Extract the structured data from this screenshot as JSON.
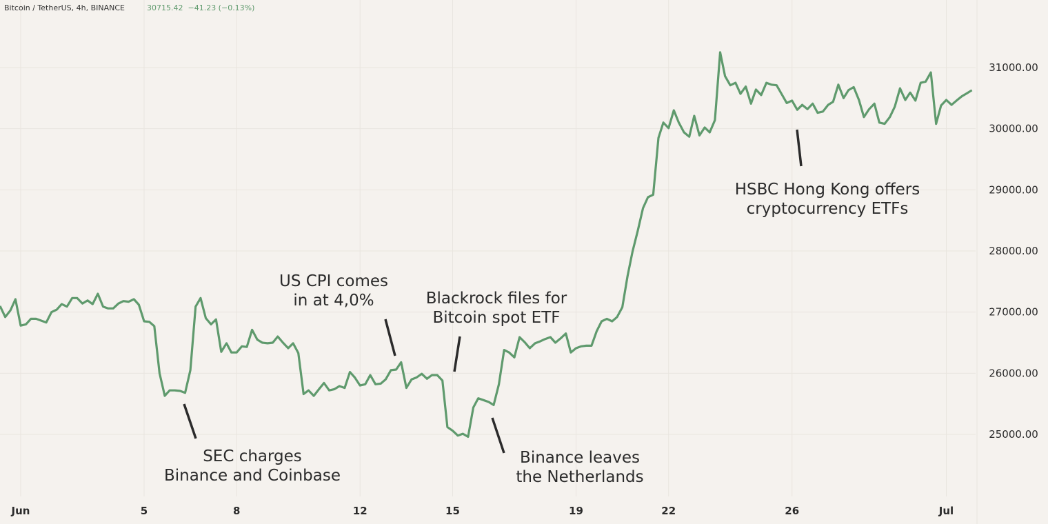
{
  "chart_data": {
    "type": "line",
    "symbol": "Bitcoin / TetherUS, 4h, BINANCE",
    "quote": "30715.42  −41.23 (−0.13%)",
    "x": [
      0.33,
      0.5,
      0.67,
      0.83,
      1,
      1.17,
      1.33,
      1.5,
      1.67,
      1.83,
      2,
      2.17,
      2.33,
      2.5,
      2.67,
      2.83,
      3,
      3.17,
      3.33,
      3.5,
      3.67,
      3.83,
      4,
      4.17,
      4.33,
      4.5,
      4.67,
      4.83,
      5,
      5.17,
      5.33,
      5.5,
      5.67,
      5.83,
      6,
      6.17,
      6.33,
      6.5,
      6.67,
      6.83,
      7,
      7.17,
      7.33,
      7.5,
      7.67,
      7.83,
      8,
      8.17,
      8.33,
      8.5,
      8.67,
      8.83,
      9,
      9.17,
      9.33,
      9.5,
      9.67,
      9.83,
      10,
      10.17,
      10.33,
      10.5,
      10.67,
      10.83,
      11,
      11.17,
      11.33,
      11.5,
      11.67,
      11.83,
      12,
      12.17,
      12.33,
      12.5,
      12.67,
      12.83,
      13,
      13.17,
      13.33,
      13.5,
      13.67,
      13.83,
      14,
      14.17,
      14.33,
      14.5,
      14.67,
      14.83,
      15,
      15.17,
      15.33,
      15.5,
      15.67,
      15.83,
      16,
      16.17,
      16.33,
      16.5,
      16.67,
      16.83,
      17,
      17.17,
      17.33,
      17.5,
      17.67,
      17.83,
      18,
      18.17,
      18.33,
      18.5,
      18.67,
      18.83,
      19,
      19.17,
      19.33,
      19.5,
      19.67,
      19.83,
      20,
      20.17,
      20.33,
      20.5,
      20.67,
      20.83,
      21,
      21.17,
      21.33,
      21.5,
      21.67,
      21.83,
      22,
      22.17,
      22.33,
      22.5,
      22.67,
      22.83,
      23,
      23.17,
      23.33,
      23.5,
      23.67,
      23.83,
      24,
      24.17,
      24.33,
      24.5,
      24.67,
      24.83,
      25,
      25.17,
      25.33,
      25.5,
      25.67,
      25.83,
      26,
      26.17,
      26.33,
      26.5,
      26.67,
      26.83,
      27,
      27.17,
      27.33,
      27.5,
      27.67,
      27.83,
      28,
      28.17,
      28.33,
      28.5,
      28.67,
      28.83,
      29,
      29.17,
      29.33,
      29.5,
      29.67,
      29.83,
      30,
      30.17,
      30.33,
      30.5,
      30.67,
      30.83,
      31,
      31.17,
      31.33,
      31.5,
      31.67,
      31.83
    ],
    "series": [
      {
        "name": "BTCUSDT",
        "color": "#5f9a6d",
        "values": [
          27100,
          26920,
          27030,
          27210,
          26780,
          26800,
          26890,
          26890,
          26860,
          26830,
          27000,
          27040,
          27130,
          27090,
          27230,
          27230,
          27140,
          27190,
          27130,
          27300,
          27090,
          27060,
          27060,
          27140,
          27180,
          27170,
          27210,
          27120,
          26850,
          26840,
          26770,
          26000,
          25630,
          25720,
          25720,
          25710,
          25680,
          26050,
          27090,
          27230,
          26900,
          26800,
          26880,
          26350,
          26490,
          26340,
          26340,
          26440,
          26430,
          26710,
          26550,
          26500,
          26490,
          26500,
          26600,
          26500,
          26410,
          26490,
          26330,
          25660,
          25720,
          25630,
          25740,
          25840,
          25720,
          25740,
          25790,
          25760,
          26020,
          25930,
          25800,
          25820,
          25970,
          25820,
          25830,
          25900,
          26050,
          26060,
          26180,
          25760,
          25900,
          25930,
          25990,
          25910,
          25970,
          25970,
          25880,
          25120,
          25060,
          24980,
          25010,
          24960,
          25440,
          25590,
          25560,
          25530,
          25480,
          25820,
          26380,
          26340,
          26260,
          26590,
          26510,
          26410,
          26490,
          26520,
          26560,
          26590,
          26500,
          26570,
          26650,
          26340,
          26410,
          26440,
          26450,
          26450,
          26690,
          26850,
          26890,
          26850,
          26920,
          27080,
          27590,
          27990,
          28330,
          28700,
          28880,
          28920,
          29850,
          30100,
          30010,
          30300,
          30100,
          29940,
          29870,
          30210,
          29890,
          30020,
          29940,
          30140,
          31250,
          30860,
          30710,
          30750,
          30570,
          30690,
          30410,
          30640,
          30550,
          30750,
          30720,
          30710,
          30560,
          30420,
          30460,
          30310,
          30390,
          30320,
          30410,
          30260,
          30280,
          30390,
          30440,
          30720,
          30500,
          30630,
          30680,
          30470,
          30190,
          30320,
          30410,
          30100,
          30080,
          30190,
          30360,
          30660,
          30470,
          30590,
          30460,
          30750,
          30770,
          30920,
          30080,
          30380,
          30470,
          30390,
          30460,
          30530,
          30580,
          30630
        ]
      }
    ],
    "xlim": [
      0.33,
      31.95
    ],
    "xticks": [
      {
        "value": 1,
        "label": "Jun"
      },
      5,
      8,
      12,
      15,
      19,
      22,
      26,
      {
        "value": 31,
        "label": "Jul"
      }
    ],
    "ylim": [
      23985,
      32105
    ],
    "yticks": [
      {
        "value": 25000,
        "label": "25000.00"
      },
      {
        "value": 26000,
        "label": "26000.00"
      },
      {
        "value": 27000,
        "label": "27000.00"
      },
      {
        "value": 28000,
        "label": "28000.00"
      },
      {
        "value": 29000,
        "label": "29000.00"
      },
      {
        "value": 30000,
        "label": "30000.00"
      },
      {
        "value": 31000,
        "label": "31000.00"
      }
    ],
    "grid": true,
    "annotations": [
      {
        "text": [
          "SEC charges",
          "Binance and Coinbase"
        ]
      },
      {
        "text": [
          "US CPI comes",
          "in at 4,0%"
        ]
      },
      {
        "text": [
          "Blackrock files for",
          "Bitcoin spot ETF"
        ]
      },
      {
        "text": [
          "Binance leaves",
          "the Netherlands"
        ]
      },
      {
        "text": [
          "HSBC Hong Kong offers",
          "cryptocurrency ETFs"
        ]
      }
    ]
  }
}
